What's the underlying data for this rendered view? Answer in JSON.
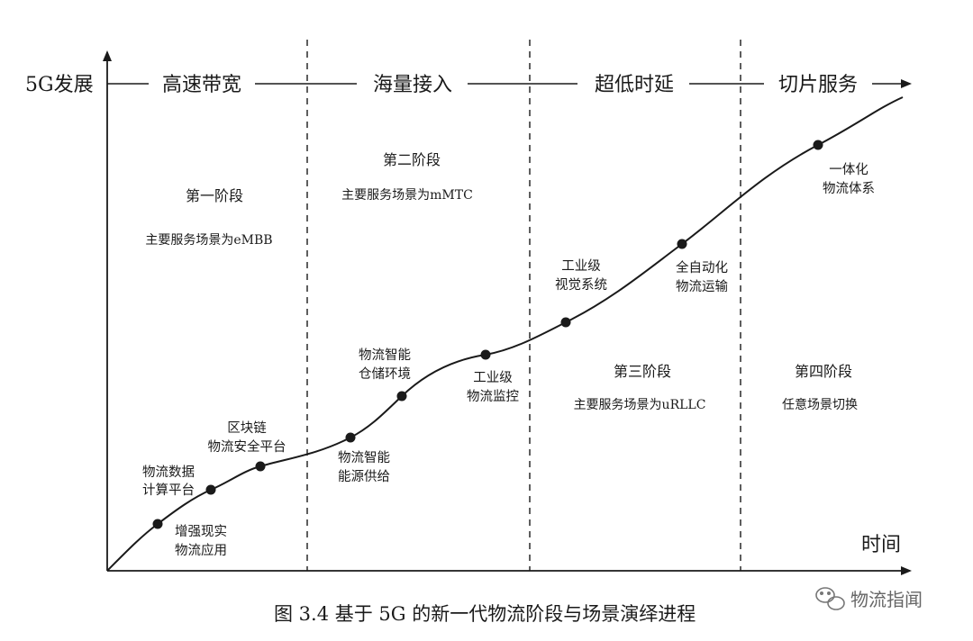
{
  "axes": {
    "y_label": "5G发展",
    "x_label": "时间"
  },
  "headers": [
    "高速带宽",
    "海量接入",
    "超低时延",
    "切片服务"
  ],
  "stages": [
    {
      "title": "第一阶段",
      "desc": "主要服务场景为eMBB"
    },
    {
      "title": "第二阶段",
      "desc": "主要服务场景为mMTC"
    },
    {
      "title": "第三阶段",
      "desc": "主要服务场景为uRLLC"
    },
    {
      "title": "第四阶段",
      "desc": "任意场景切换"
    }
  ],
  "milestones": [
    {
      "lines": [
        "增强现实",
        "物流应用"
      ]
    },
    {
      "lines": [
        "物流数据",
        "计算平台"
      ]
    },
    {
      "lines": [
        "区块链",
        "物流安全平台"
      ]
    },
    {
      "lines": [
        "物流智能",
        "能源供给"
      ]
    },
    {
      "lines": [
        "物流智能",
        "仓储环境"
      ]
    },
    {
      "lines": [
        "工业级",
        "物流监控"
      ]
    },
    {
      "lines": [
        "工业级",
        "视觉系统"
      ]
    },
    {
      "lines": [
        "全自动化",
        "物流运输"
      ]
    },
    {
      "lines": [
        "一体化",
        "物流体系"
      ]
    }
  ],
  "caption": "图 3.4  基于 5G 的新一代物流阶段与场景演绎进程",
  "watermark": "物流指闻",
  "colors": {
    "ink": "#1a1a1a",
    "watermark": "#666666"
  }
}
